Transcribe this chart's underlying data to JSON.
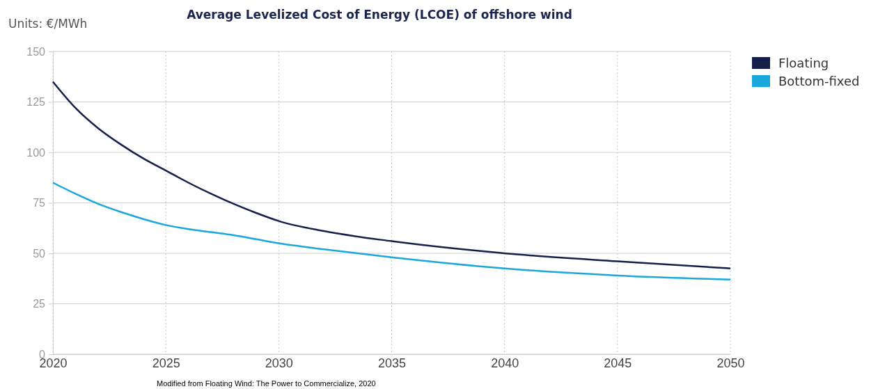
{
  "chart_data": {
    "type": "line",
    "title": "Average Levelized Cost of Energy (LCOE) of offshore wind",
    "ylabel": "Units: €/MWh",
    "x": [
      2020,
      2021,
      2022,
      2023,
      2024,
      2025,
      2026,
      2027,
      2028,
      2029,
      2030,
      2032,
      2035,
      2040,
      2045,
      2050
    ],
    "series": [
      {
        "name": "Floating",
        "color": "#14204a",
        "values": [
          135,
          122,
          112,
          104,
          97,
          91,
          85,
          79.5,
          74.5,
          70,
          66,
          61,
          56,
          50,
          46,
          42.5
        ]
      },
      {
        "name": "Bottom-fixed",
        "color": "#1aa7dc",
        "values": [
          85,
          79.5,
          74.5,
          70.5,
          67,
          64,
          62,
          60.5,
          59,
          57,
          55,
          52,
          48,
          42.5,
          39,
          37
        ]
      }
    ],
    "xlim": [
      2020,
      2050
    ],
    "xticks": [
      2020,
      2025,
      2030,
      2035,
      2040,
      2045,
      2050
    ],
    "ylim": [
      0,
      150
    ],
    "yticks": [
      0,
      25,
      50,
      75,
      100,
      125,
      150
    ],
    "grid": true,
    "legend": "top right",
    "marker": "none",
    "line_style": "solid",
    "annotations": [
      "Modified from  Floating Wind: The Power to Commercialize, 2020"
    ]
  }
}
